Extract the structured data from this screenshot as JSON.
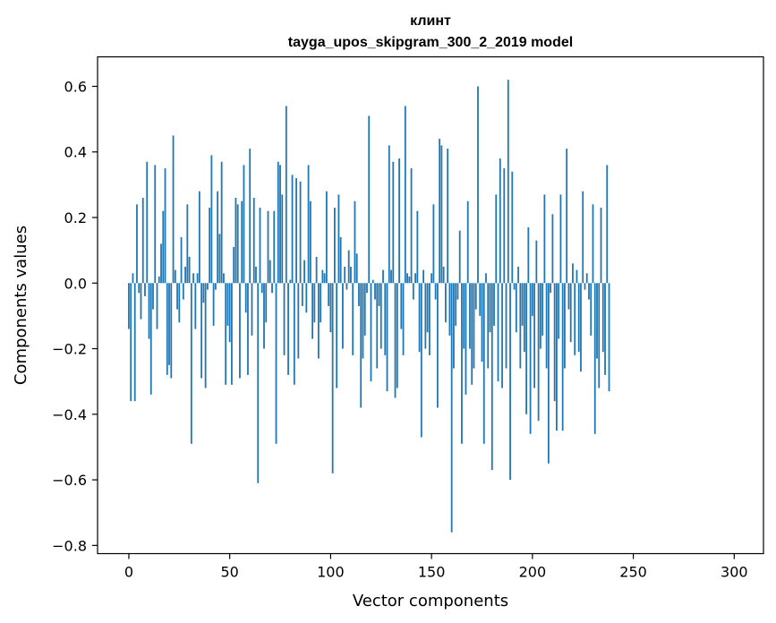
{
  "chart_data": {
    "type": "bar",
    "title": "клинт",
    "subtitle": "tayga_upos_skipgram_300_2_2019 model",
    "xlabel": "Vector components",
    "ylabel": "Components values",
    "xlim": [
      -15.5,
      314.5
    ],
    "ylim": [
      -0.825,
      0.69
    ],
    "xticks": [
      0,
      50,
      100,
      150,
      200,
      250,
      300
    ],
    "xtick_labels": [
      "0",
      "50",
      "100",
      "150",
      "200",
      "250",
      "300"
    ],
    "yticks": [
      -0.8,
      -0.6,
      -0.4,
      -0.2,
      0.0,
      0.2,
      0.4,
      0.6
    ],
    "ytick_labels": [
      "−0.8",
      "−0.6",
      "−0.4",
      "−0.2",
      "0.0",
      "0.2",
      "0.4",
      "0.6"
    ],
    "grid": false,
    "bar_color": "#1f77b4",
    "bar_width": 0.8,
    "values": [
      -0.14,
      -0.36,
      0.03,
      -0.36,
      0.24,
      -0.03,
      -0.11,
      0.26,
      -0.04,
      0.37,
      -0.17,
      -0.34,
      -0.08,
      0.36,
      -0.14,
      0.02,
      0.12,
      0.22,
      0.35,
      -0.28,
      -0.25,
      -0.29,
      0.45,
      0.04,
      -0.08,
      -0.12,
      0.14,
      -0.05,
      0.05,
      0.24,
      0.08,
      -0.49,
      0.03,
      -0.14,
      0.03,
      0.28,
      -0.29,
      -0.06,
      -0.32,
      -0.02,
      0.23,
      0.39,
      -0.13,
      -0.02,
      0.28,
      0.15,
      0.37,
      0.03,
      -0.31,
      -0.13,
      -0.18,
      -0.31,
      0.11,
      0.26,
      0.24,
      -0.29,
      0.25,
      0.36,
      -0.09,
      -0.28,
      0.41,
      -0.16,
      0.26,
      0.05,
      -0.61,
      0.23,
      -0.03,
      -0.2,
      -0.12,
      0.22,
      0.07,
      -0.03,
      0.22,
      -0.49,
      0.37,
      0.36,
      0.27,
      -0.22,
      0.54,
      -0.28,
      0.01,
      0.33,
      -0.31,
      0.32,
      -0.23,
      0.31,
      -0.07,
      0.07,
      -0.09,
      0.36,
      0.25,
      -0.17,
      -0.12,
      0.08,
      -0.23,
      -0.12,
      0.04,
      0.03,
      0.28,
      -0.07,
      -0.15,
      -0.58,
      0.23,
      -0.32,
      0.27,
      0.14,
      -0.2,
      0.05,
      -0.02,
      0.1,
      0.05,
      -0.22,
      0.25,
      0.09,
      -0.07,
      -0.38,
      -0.23,
      -0.16,
      -0.03,
      0.51,
      -0.3,
      0.01,
      -0.05,
      -0.26,
      -0.07,
      -0.2,
      0.04,
      -0.22,
      -0.33,
      0.42,
      0.04,
      0.37,
      -0.35,
      -0.32,
      0.38,
      -0.14,
      -0.22,
      0.54,
      0.03,
      0.02,
      0.35,
      -0.05,
      0.03,
      0.22,
      -0.21,
      -0.47,
      0.04,
      -0.2,
      -0.15,
      -0.22,
      0.03,
      0.24,
      -0.05,
      -0.38,
      0.44,
      0.42,
      0.05,
      -0.12,
      0.41,
      -0.16,
      -0.76,
      -0.26,
      -0.13,
      -0.05,
      0.16,
      -0.49,
      -0.2,
      -0.34,
      0.25,
      -0.2,
      -0.31,
      -0.26,
      -0.08,
      0.6,
      -0.1,
      -0.24,
      -0.49,
      0.03,
      -0.26,
      -0.15,
      -0.57,
      -0.13,
      0.27,
      -0.3,
      0.38,
      -0.32,
      0.35,
      -0.26,
      0.62,
      -0.6,
      0.34,
      -0.02,
      -0.15,
      0.05,
      -0.26,
      -0.13,
      -0.21,
      -0.4,
      0.17,
      -0.46,
      -0.1,
      -0.32,
      0.13,
      -0.42,
      -0.2,
      -0.16,
      0.27,
      -0.26,
      -0.55,
      -0.03,
      0.21,
      -0.36,
      -0.45,
      -0.17,
      0.27,
      -0.45,
      -0.26,
      0.41,
      -0.08,
      -0.18,
      0.06,
      -0.22,
      0.04,
      -0.21,
      -0.27,
      0.28,
      -0.02,
      0.03,
      -0.05,
      -0.16,
      0.24,
      -0.46,
      -0.23,
      -0.32,
      0.23,
      -0.21,
      -0.28,
      0.36,
      -0.33
    ]
  }
}
